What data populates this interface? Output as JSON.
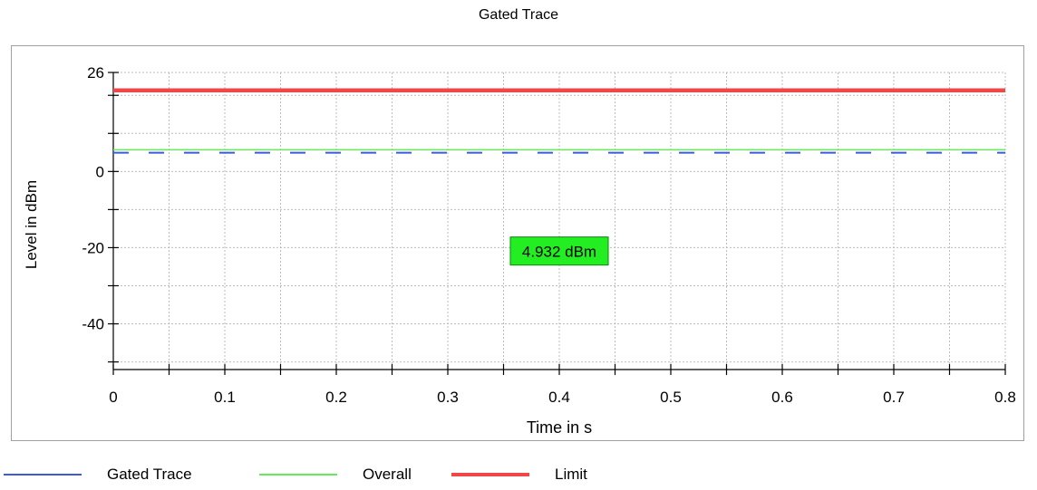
{
  "chart_data": {
    "type": "line",
    "title": "Gated Trace",
    "xlabel": "Time in s",
    "ylabel": "Level in dBm",
    "xlim": [
      0,
      0.8
    ],
    "ylim": [
      -52,
      26
    ],
    "x_ticks": [
      "0",
      "0.1",
      "0.2",
      "0.3",
      "0.4",
      "0.5",
      "0.6",
      "0.7",
      "0.8"
    ],
    "y_ticks": [
      "26",
      "0",
      "-20",
      "-40"
    ],
    "grid": true,
    "legend_position": "bottom",
    "series": [
      {
        "name": "Gated Trace",
        "color": "#3b5bdb",
        "style": "dashed",
        "x": [
          0,
          0.8
        ],
        "y": [
          4.932,
          4.932
        ]
      },
      {
        "name": "Overall",
        "color": "#66e85a",
        "style": "solid",
        "x": [
          0,
          0.8
        ],
        "y": [
          5.7,
          5.7
        ]
      },
      {
        "name": "Limit",
        "color": "#f04848",
        "style": "solid-thick",
        "x": [
          0,
          0.8
        ],
        "y": [
          21.3,
          21.3
        ]
      }
    ],
    "annotation": {
      "text": "4.932 dBm",
      "x": 0.4,
      "y": -21,
      "color": "#22ee22"
    }
  }
}
